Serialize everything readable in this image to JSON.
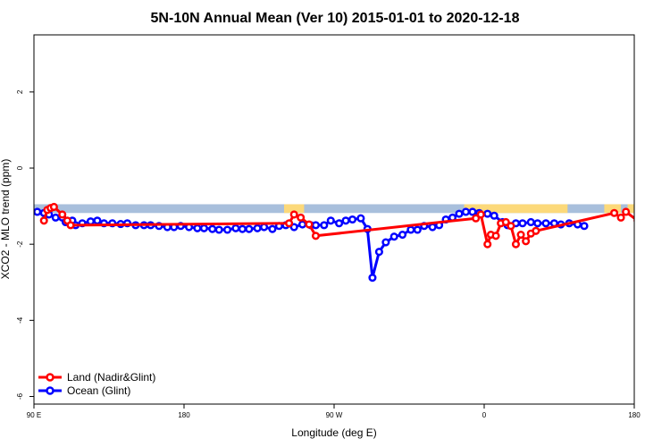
{
  "chart_data": {
    "type": "line",
    "title": "5N-10N Annual Mean (Ver 10)   2015-01-01 to 2020-12-18",
    "xlabel": "Longitude (deg E)",
    "ylabel": "XCO2 - MLO trend (ppm)",
    "xlim": [
      90,
      450
    ],
    "ylim": [
      -6.2,
      3.5
    ],
    "x_ticks": [
      {
        "value": 90,
        "label": "90 E"
      },
      {
        "value": 180,
        "label": "180"
      },
      {
        "value": 270,
        "label": "90 W"
      },
      {
        "value": 360,
        "label": "0"
      },
      {
        "value": 450,
        "label": "180"
      }
    ],
    "y_ticks": [
      {
        "value": 2,
        "label": "2"
      },
      {
        "value": 0,
        "label": "0"
      },
      {
        "value": -2,
        "label": "-2"
      },
      {
        "value": -4,
        "label": "-4"
      },
      {
        "value": -6,
        "label": "-6"
      }
    ],
    "grid": false,
    "legend_position": "bottom-left",
    "land_mask_band": {
      "y_top": -0.95,
      "y_bottom": -1.18
    },
    "land_segments_x": [
      [
        240,
        252
      ],
      [
        348,
        410
      ],
      [
        432,
        442
      ],
      [
        446,
        450
      ]
    ],
    "colors": {
      "ocean_band": "#a8bfdc",
      "land_band": "#fcd97a",
      "land": "#ff0000",
      "ocean": "#0000ff"
    },
    "series": [
      {
        "name": "Land (Nadir&Glint)",
        "color": "#ff0000",
        "points": [
          [
            96,
            -1.38
          ],
          [
            98,
            -1.1
          ],
          [
            100,
            -1.05
          ],
          [
            102,
            -1.02
          ],
          [
            107,
            -1.22
          ],
          [
            110,
            -1.38
          ],
          [
            112,
            -1.5
          ],
          [
            243,
            -1.45
          ],
          [
            246,
            -1.22
          ],
          [
            250,
            -1.3
          ],
          [
            255,
            -1.48
          ],
          [
            259,
            -1.78
          ],
          [
            355,
            -1.32
          ],
          [
            358,
            -1.22
          ],
          [
            362,
            -2.0
          ],
          [
            364,
            -1.75
          ],
          [
            367,
            -1.78
          ],
          [
            370,
            -1.45
          ],
          [
            373,
            -1.42
          ],
          [
            376,
            -1.52
          ],
          [
            379,
            -2.0
          ],
          [
            382,
            -1.75
          ],
          [
            385,
            -1.92
          ],
          [
            388,
            -1.72
          ],
          [
            391,
            -1.65
          ],
          [
            438,
            -1.18
          ],
          [
            442,
            -1.3
          ],
          [
            445,
            -1.15
          ],
          [
            452,
            -1.38
          ],
          [
            455,
            -1.08
          ],
          [
            458,
            -1.02
          ]
        ]
      },
      {
        "name": "Ocean (Glint)",
        "color": "#0000ff",
        "points": [
          [
            92,
            -1.15
          ],
          [
            96,
            -1.18
          ],
          [
            99,
            -1.22
          ],
          [
            103,
            -1.3
          ],
          [
            107,
            -1.3
          ],
          [
            109,
            -1.42
          ],
          [
            113,
            -1.38
          ],
          [
            115,
            -1.5
          ],
          [
            119,
            -1.45
          ],
          [
            124,
            -1.4
          ],
          [
            128,
            -1.38
          ],
          [
            132,
            -1.45
          ],
          [
            137,
            -1.45
          ],
          [
            142,
            -1.47
          ],
          [
            146,
            -1.45
          ],
          [
            151,
            -1.5
          ],
          [
            156,
            -1.5
          ],
          [
            160,
            -1.5
          ],
          [
            165,
            -1.52
          ],
          [
            170,
            -1.55
          ],
          [
            174,
            -1.55
          ],
          [
            178,
            -1.52
          ],
          [
            183,
            -1.55
          ],
          [
            188,
            -1.58
          ],
          [
            192,
            -1.58
          ],
          [
            197,
            -1.6
          ],
          [
            201,
            -1.62
          ],
          [
            206,
            -1.62
          ],
          [
            211,
            -1.58
          ],
          [
            215,
            -1.6
          ],
          [
            219,
            -1.6
          ],
          [
            224,
            -1.58
          ],
          [
            228,
            -1.55
          ],
          [
            233,
            -1.6
          ],
          [
            237,
            -1.52
          ],
          [
            241,
            -1.5
          ],
          [
            246,
            -1.55
          ],
          [
            251,
            -1.48
          ],
          [
            256,
            -1.5
          ],
          [
            259,
            -1.5
          ],
          [
            264,
            -1.5
          ],
          [
            268,
            -1.38
          ],
          [
            273,
            -1.45
          ],
          [
            277,
            -1.38
          ],
          [
            281,
            -1.35
          ],
          [
            286,
            -1.32
          ],
          [
            290,
            -1.6
          ],
          [
            293,
            -2.88
          ],
          [
            297,
            -2.2
          ],
          [
            301,
            -1.95
          ],
          [
            306,
            -1.8
          ],
          [
            311,
            -1.75
          ],
          [
            316,
            -1.62
          ],
          [
            320,
            -1.62
          ],
          [
            324,
            -1.52
          ],
          [
            329,
            -1.55
          ],
          [
            333,
            -1.5
          ],
          [
            337,
            -1.35
          ],
          [
            341,
            -1.3
          ],
          [
            345,
            -1.2
          ],
          [
            349,
            -1.15
          ],
          [
            353,
            -1.15
          ],
          [
            357,
            -1.18
          ],
          [
            362,
            -1.2
          ],
          [
            366,
            -1.25
          ],
          [
            371,
            -1.42
          ],
          [
            374,
            -1.5
          ],
          [
            379,
            -1.45
          ],
          [
            383,
            -1.45
          ],
          [
            388,
            -1.42
          ],
          [
            392,
            -1.45
          ],
          [
            397,
            -1.45
          ],
          [
            402,
            -1.45
          ],
          [
            406,
            -1.48
          ],
          [
            411,
            -1.45
          ],
          [
            416,
            -1.48
          ],
          [
            420,
            -1.52
          ]
        ]
      }
    ]
  }
}
